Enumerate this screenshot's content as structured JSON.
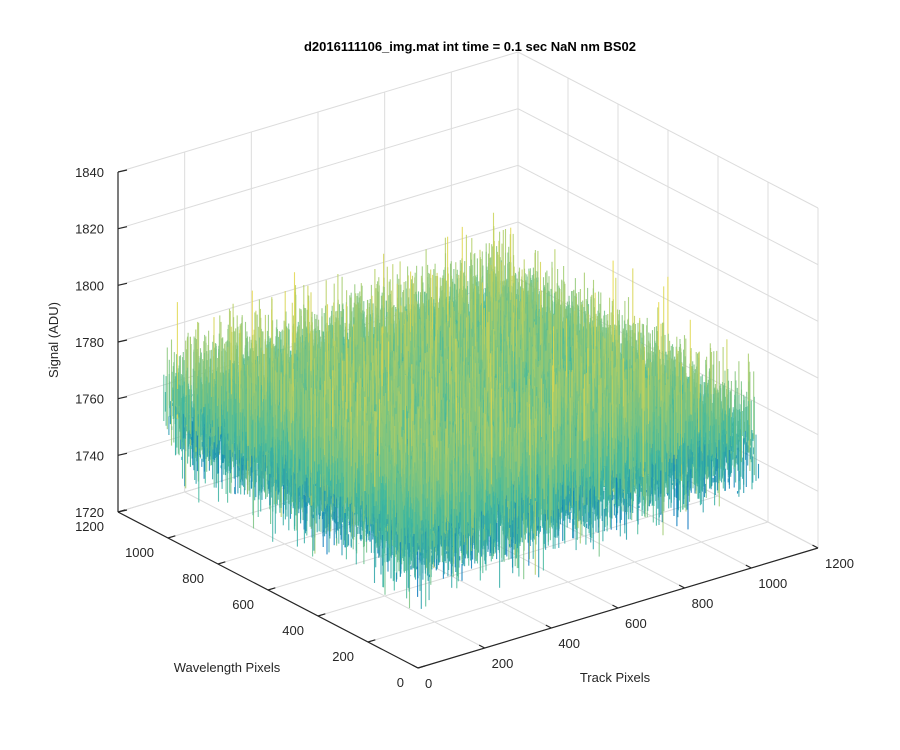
{
  "chart_data": {
    "type": "surface",
    "title": "d2016111106_img.mat int time = 0.1 sec  NaN nm BS02",
    "xlabel": "Track Pixels",
    "ylabel": "Wavelength Pixels",
    "zlabel": "Signal (ADU)",
    "xlim": [
      0,
      1200
    ],
    "ylim": [
      0,
      1200
    ],
    "zlim": [
      1720,
      1840
    ],
    "x_ticks": [
      "0",
      "200",
      "400",
      "600",
      "800",
      "1000",
      "1200"
    ],
    "y_ticks": [
      "0",
      "200",
      "400",
      "600",
      "800",
      "1000",
      "1200"
    ],
    "z_ticks": [
      "1720",
      "1740",
      "1760",
      "1780",
      "1800",
      "1820",
      "1840"
    ],
    "surface_extent": {
      "x": [
        0,
        1024
      ],
      "y": [
        0,
        1024
      ]
    },
    "signal_mean": 1768,
    "signal_typical_range": [
      1740,
      1805
    ],
    "signal_peak": 1830,
    "grid": true,
    "colormap": "parula",
    "colors": {
      "low": "#0072BD",
      "mid": "#3FB8A0",
      "high": "#E6D84A"
    }
  }
}
